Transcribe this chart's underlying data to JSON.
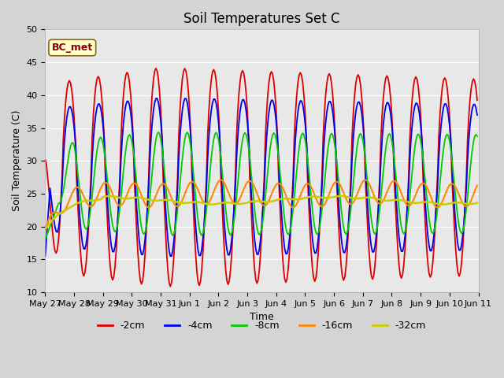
{
  "title": "Soil Temperatures Set C",
  "xlabel": "Time",
  "ylabel": "Soil Temperature (C)",
  "ylim": [
    10,
    50
  ],
  "series_labels": [
    "-2cm",
    "-4cm",
    "-8cm",
    "-16cm",
    "-32cm"
  ],
  "series_colors": [
    "#dd0000",
    "#0000ee",
    "#00cc00",
    "#ff8800",
    "#cccc00"
  ],
  "xtick_labels": [
    "May 27",
    "May 28",
    "May 29",
    "May 30",
    "May 31",
    "Jun 1",
    "Jun 2",
    "Jun 3",
    "Jun 4",
    "Jun 5",
    "Jun 6",
    "Jun 7",
    "Jun 8",
    "Jun 9",
    "Jun 10",
    "Jun 11"
  ],
  "ytick_labels": [
    10,
    15,
    20,
    25,
    30,
    35,
    40,
    45,
    50
  ],
  "title_fontsize": 12,
  "axis_label_fontsize": 9,
  "tick_fontsize": 8,
  "fig_bg": "#d4d4d4",
  "ax_bg": "#e8e8e8",
  "grid_color": "#ffffff",
  "figsize": [
    6.4,
    4.8
  ],
  "dpi": 100
}
